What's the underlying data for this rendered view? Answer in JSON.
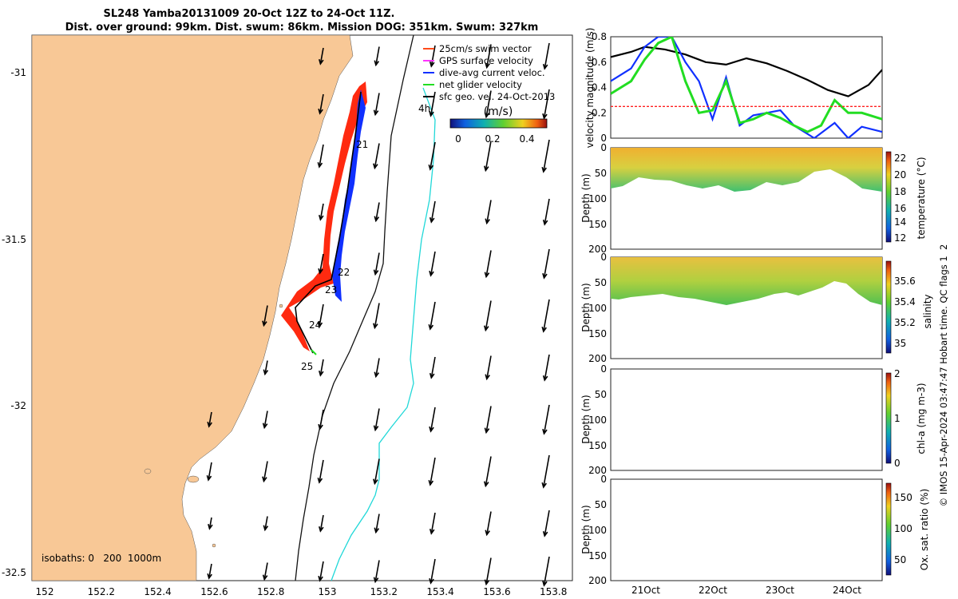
{
  "title_line1": "SL248 Yamba20131009 20-Oct 12Z to 24-Oct 11Z.",
  "title_line2": "Dist. over ground: 99km. Dist. swum: 86km. Mission DOG: 351km. Swum: 327km",
  "map": {
    "x_ticks": [
      "152",
      "152.2",
      "152.4",
      "152.6",
      "152.8",
      "153",
      "153.2",
      "153.4",
      "153.6",
      "153.8"
    ],
    "y_ticks": [
      "-31",
      "-31.5",
      "-32",
      "-32.5"
    ],
    "isobaths": "isobaths: 0   200  1000m",
    "day_labels": [
      "21",
      "22",
      "23",
      "24",
      "25",
      "4h"
    ],
    "legend": [
      {
        "label": "25cm/s swim vector",
        "color": "#ff4a1a"
      },
      {
        "label": "GPS surface velocity",
        "color": "#ff33ff"
      },
      {
        "label": "dive-avg current veloc.",
        "color": "#1030ff"
      },
      {
        "label": "net glider velocity",
        "color": "#22dd22"
      },
      {
        "label": "sfc geo. vel. 24-Oct-2013",
        "color": "#000000"
      }
    ],
    "colorbar_unit": "(m/s)",
    "colorbar_ticks": [
      "0",
      "0.2",
      "0.4"
    ],
    "land_color": "#f8c896"
  },
  "chart_data": [
    {
      "type": "line",
      "ylabel": "velocity magnitude (m/s)",
      "ylim": [
        0,
        0.8
      ],
      "y_ticks": [
        "0",
        "0.2",
        "0.4",
        "0.6",
        "0.8"
      ],
      "series": [
        {
          "color": "#000000",
          "x": [
            20.5,
            20.8,
            21.0,
            21.3,
            21.6,
            21.9,
            22.2,
            22.5,
            22.8,
            23.1,
            23.4,
            23.7,
            24.0,
            24.3,
            24.5
          ],
          "values": [
            0.64,
            0.68,
            0.72,
            0.7,
            0.66,
            0.6,
            0.58,
            0.63,
            0.59,
            0.53,
            0.46,
            0.38,
            0.33,
            0.42,
            0.54
          ]
        },
        {
          "color": "#1030ff",
          "x": [
            20.5,
            20.8,
            21.0,
            21.2,
            21.4,
            21.6,
            21.8,
            21.9,
            22.0,
            22.2,
            22.4,
            22.6,
            22.8,
            23.0,
            23.2,
            23.5,
            23.8,
            24.0,
            24.2,
            24.5
          ],
          "values": [
            0.45,
            0.55,
            0.72,
            0.8,
            0.8,
            0.6,
            0.45,
            0.3,
            0.15,
            0.48,
            0.1,
            0.18,
            0.2,
            0.22,
            0.1,
            0.0,
            0.12,
            0.0,
            0.09,
            0.05
          ]
        },
        {
          "color": "#22dd22",
          "x": [
            20.5,
            20.8,
            21.0,
            21.2,
            21.4,
            21.6,
            21.8,
            22.0,
            22.2,
            22.4,
            22.6,
            22.8,
            23.0,
            23.2,
            23.4,
            23.6,
            23.8,
            24.0,
            24.2,
            24.5
          ],
          "values": [
            0.35,
            0.45,
            0.62,
            0.75,
            0.8,
            0.45,
            0.2,
            0.22,
            0.45,
            0.12,
            0.15,
            0.2,
            0.16,
            0.1,
            0.05,
            0.1,
            0.3,
            0.2,
            0.2,
            0.15
          ]
        },
        {
          "color": "#ff2020",
          "x": [
            20.5,
            24.5
          ],
          "values": [
            0.25,
            0.25
          ]
        }
      ]
    },
    {
      "type": "heatmap",
      "ylabel": "Depth (m)",
      "colorbar_label": "temperature (°C)",
      "colorbar_ticks": [
        "22",
        "20",
        "18",
        "16",
        "14",
        "12"
      ],
      "ylim": [
        200,
        0
      ],
      "y_ticks": [
        "0",
        "50",
        "100",
        "150",
        "200"
      ]
    },
    {
      "type": "heatmap",
      "ylabel": "Depth (m)",
      "colorbar_label": "salinity",
      "colorbar_ticks": [
        "35.6",
        "35.4",
        "35.2",
        "35"
      ],
      "ylim": [
        200,
        0
      ],
      "y_ticks": [
        "0",
        "50",
        "100",
        "150",
        "200"
      ]
    },
    {
      "type": "heatmap",
      "ylabel": "Depth (m)",
      "colorbar_label": "chl-a (mg m-3)",
      "colorbar_ticks": [
        "2",
        "1",
        "0"
      ],
      "ylim": [
        200,
        0
      ],
      "y_ticks": [
        "0",
        "50",
        "100",
        "150",
        "200"
      ]
    },
    {
      "type": "heatmap",
      "ylabel": "Depth (m)",
      "colorbar_label": "Ox. sat. ratio (%)",
      "colorbar_ticks": [
        "150",
        "100",
        "50"
      ],
      "ylim": [
        200,
        0
      ],
      "y_ticks": [
        "0",
        "50",
        "100",
        "150",
        "200"
      ]
    }
  ],
  "x_time_ticks": [
    "21Oct",
    "22Oct",
    "23Oct",
    "24Oct"
  ],
  "side_note": "© IMOS 15-Apr-2024 03:47:47 Hobart time. QC flags 1  2"
}
